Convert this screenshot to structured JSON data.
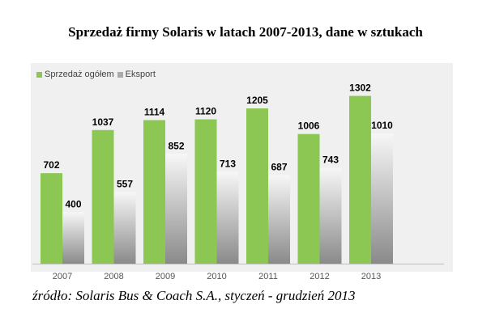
{
  "title": "Sprzedaż firmy Solaris w latach 2007-2013, dane w sztukach",
  "source": "źródło: Solaris Bus & Coach S.A., styczeń - grudzień 2013",
  "chart_data": {
    "type": "bar",
    "title": "Sprzedaż firmy Solaris w latach 2007-2013, dane w sztukach",
    "xlabel": "",
    "ylabel": "",
    "ylim": [
      0,
      1450
    ],
    "grid": false,
    "legend_placement": "top-left",
    "categories": [
      "2007",
      "2008",
      "2009",
      "2010",
      "2011",
      "2012",
      "2013"
    ],
    "series": [
      {
        "name": "Sprzedaż ogółem",
        "values": [
          702,
          1037,
          1114,
          1120,
          1205,
          1006,
          1302
        ],
        "color": "#8cc653"
      },
      {
        "name": "Eksport",
        "values": [
          400,
          557,
          852,
          713,
          687,
          743,
          1010
        ],
        "color": "#aaaaaa"
      }
    ]
  }
}
